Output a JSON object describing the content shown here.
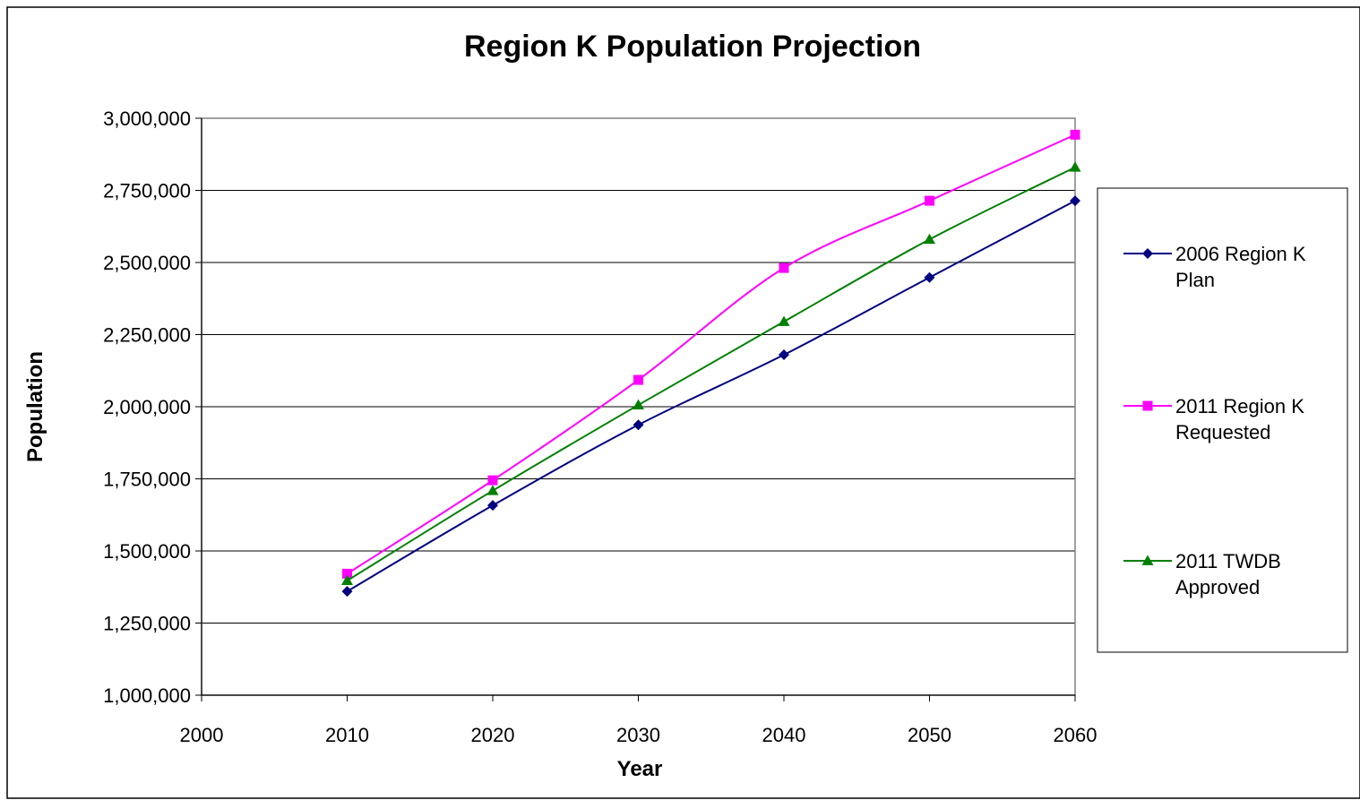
{
  "chart_data": {
    "type": "line",
    "title": "Region K Population Projection",
    "xlabel": "Year",
    "ylabel": "Population",
    "x_ticks": [
      "2000",
      "2010",
      "2020",
      "2030",
      "2040",
      "2050",
      "2060"
    ],
    "y_ticks": [
      "1,000,000",
      "1,250,000",
      "1,500,000",
      "1,750,000",
      "2,000,000",
      "2,250,000",
      "2,500,000",
      "2,750,000",
      "3,000,000"
    ],
    "xlim": [
      2000,
      2060
    ],
    "ylim": [
      1000000,
      3000000
    ],
    "grid": "horizontal",
    "legend_position": "right",
    "x": [
      2010,
      2020,
      2030,
      2040,
      2050,
      2060
    ],
    "series": [
      {
        "name": "2006 Region K Plan",
        "label_lines": [
          "2006 Region K",
          "Plan"
        ],
        "color": "#000080",
        "marker": "diamond",
        "values": [
          1360000,
          1658000,
          1937000,
          2180000,
          2448000,
          2714000
        ]
      },
      {
        "name": "2011 Region K Requested",
        "label_lines": [
          "2011 Region K",
          "Requested"
        ],
        "color": "#FF00FF",
        "marker": "square",
        "values": [
          1421000,
          1745000,
          2093000,
          2481000,
          2714000,
          2943000
        ]
      },
      {
        "name": "2011 TWDB Approved",
        "label_lines": [
          "2011 TWDB",
          "Approved"
        ],
        "color": "#008000",
        "marker": "triangle",
        "values": [
          1397000,
          1709000,
          2006000,
          2295000,
          2580000,
          2830000
        ]
      }
    ]
  }
}
